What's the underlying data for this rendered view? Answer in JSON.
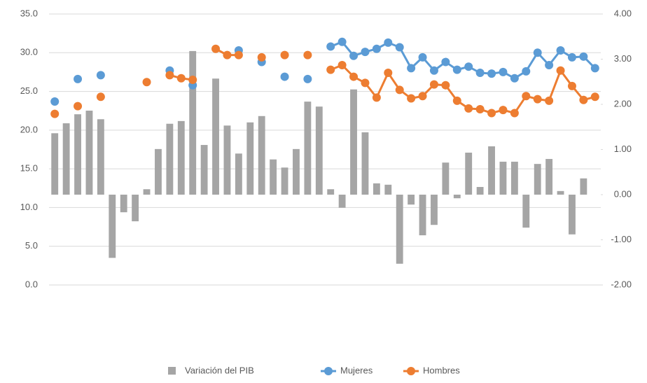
{
  "chart_data": {
    "type": "bar",
    "categories": [
      null,
      null,
      null,
      null,
      null,
      null,
      null,
      null,
      null,
      null,
      null,
      null,
      null,
      null,
      null,
      null,
      null,
      null,
      null,
      null,
      null,
      null,
      null,
      null,
      null,
      null,
      null,
      null,
      null,
      null,
      null,
      null,
      null,
      null,
      null,
      null,
      null,
      null,
      null,
      null,
      null,
      null,
      null,
      null,
      null,
      null,
      null,
      null
    ],
    "series": [
      {
        "name": "Variación del PIB",
        "color": "#a5a5a5",
        "type": "bar",
        "axis": "y2",
        "values": [
          1.36,
          1.58,
          1.78,
          1.86,
          1.67,
          -1.4,
          -0.39,
          -0.59,
          0.12,
          1.01,
          1.57,
          1.63,
          3.18,
          1.1,
          2.57,
          1.53,
          0.91,
          1.6,
          1.74,
          0.78,
          0.6,
          1.01,
          2.06,
          1.95,
          0.12,
          -0.29,
          2.33,
          1.38,
          0.25,
          0.22,
          -1.53,
          -0.22,
          -0.9,
          -0.67,
          0.71,
          -0.08,
          0.93,
          0.17,
          1.07,
          0.73,
          0.73,
          -0.73,
          0.68,
          0.79,
          0.08,
          -0.88,
          0.36,
          null
        ]
      },
      {
        "name": "Mujeres",
        "color": "#5b9bd5",
        "type": "line",
        "values": [
          23.7,
          null,
          26.6,
          null,
          27.1,
          null,
          null,
          null,
          null,
          null,
          27.7,
          null,
          25.8,
          null,
          null,
          null,
          30.3,
          null,
          28.8,
          null,
          26.9,
          null,
          26.6,
          null,
          30.8,
          31.4,
          29.6,
          30.1,
          30.5,
          31.3,
          30.7,
          28.0,
          29.4,
          27.7,
          28.8,
          27.8,
          28.2,
          27.4,
          27.3,
          27.5,
          26.7,
          27.6,
          30.0,
          28.4,
          30.3,
          29.4,
          29.5,
          28.0
        ]
      },
      {
        "name": "Hombres",
        "color": "#ed7d31",
        "type": "line",
        "values": [
          22.1,
          null,
          23.1,
          null,
          24.3,
          null,
          null,
          null,
          26.2,
          null,
          27.1,
          26.7,
          26.5,
          null,
          30.5,
          29.7,
          29.7,
          null,
          29.4,
          null,
          29.7,
          null,
          29.7,
          null,
          27.8,
          28.4,
          26.9,
          26.1,
          24.2,
          27.4,
          25.2,
          24.1,
          24.4,
          25.9,
          25.8,
          23.8,
          22.8,
          22.7,
          22.2,
          22.6,
          22.2,
          24.4,
          24.0,
          23.8,
          27.7,
          25.7,
          23.9,
          24.3
        ]
      }
    ],
    "ylim": [
      0,
      35
    ],
    "yticks": [
      {
        "value": 0,
        "label": "0.0"
      },
      {
        "value": 5,
        "label": "5.0"
      },
      {
        "value": 10,
        "label": "10.0"
      },
      {
        "value": 15,
        "label": "15.0"
      },
      {
        "value": 20,
        "label": "20.0"
      },
      {
        "value": 25,
        "label": "25.0"
      },
      {
        "value": 30,
        "label": "30.0"
      },
      {
        "value": 35,
        "label": "35.0"
      }
    ],
    "y2lim": [
      -2,
      4
    ],
    "y2ticks": [
      {
        "value": -2,
        "label": "-2.00"
      },
      {
        "value": -1,
        "label": "-1.00"
      },
      {
        "value": 0,
        "label": "0.00"
      },
      {
        "value": 1,
        "label": "1.00"
      },
      {
        "value": 2,
        "label": "2.00"
      },
      {
        "value": 3,
        "label": "3.00"
      },
      {
        "value": 4,
        "label": "4.00"
      }
    ],
    "grid": true,
    "legend": "bottom"
  }
}
